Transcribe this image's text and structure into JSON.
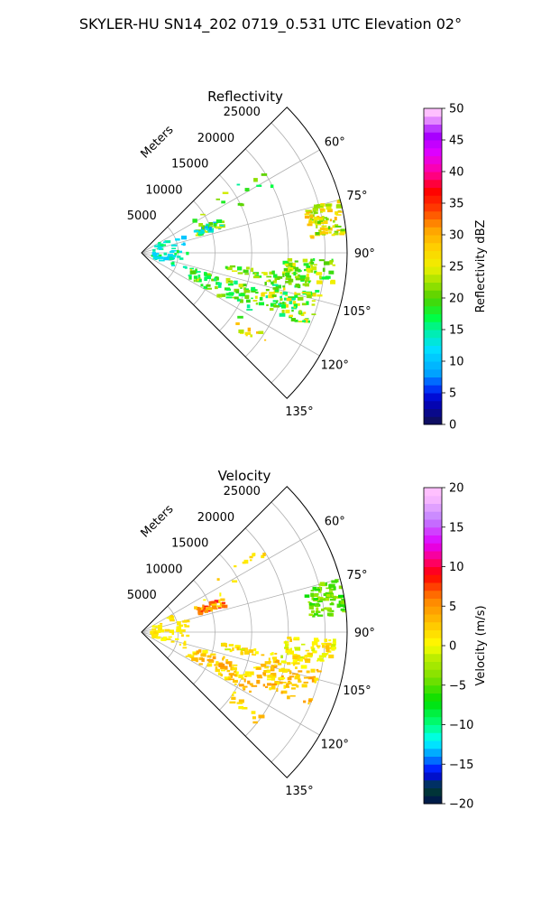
{
  "figure": {
    "title": "SKYLER-HU  SN14_202  0719_0.531 UTC Elevation 02°"
  },
  "chart_data": [
    {
      "type": "polar",
      "title": "Reflectivity",
      "radial_label": "Meters",
      "radial_ticks": [
        "5000",
        "10000",
        "15000",
        "20000",
        "25000"
      ],
      "radial_tick_values": [
        5000,
        10000,
        15000,
        20000,
        25000
      ],
      "rmax": 28000,
      "theta_min": 45,
      "theta_max": 135,
      "angle_ticks": [
        "60°",
        "75°",
        "90°",
        "105°",
        "120°",
        "135°"
      ],
      "angle_tick_values": [
        60,
        75,
        90,
        105,
        120,
        135
      ],
      "colorbar": {
        "label": "Reflectivity dBZ",
        "min": 0,
        "max": 50,
        "ticks": [
          "0",
          "5",
          "10",
          "15",
          "20",
          "25",
          "30",
          "35",
          "40",
          "45",
          "50"
        ],
        "colormap": "pyart_NWSRef"
      }
    },
    {
      "type": "polar",
      "title": "Velocity",
      "radial_label": "Meters",
      "radial_ticks": [
        "5000",
        "10000",
        "15000",
        "20000",
        "25000"
      ],
      "radial_tick_values": [
        5000,
        10000,
        15000,
        20000,
        25000
      ],
      "rmax": 28000,
      "theta_min": 45,
      "theta_max": 135,
      "angle_ticks": [
        "60°",
        "75°",
        "90°",
        "105°",
        "120°",
        "135°"
      ],
      "angle_tick_values": [
        60,
        75,
        90,
        105,
        120,
        135
      ],
      "colorbar": {
        "label": "Velocity (m/s)",
        "min": -20,
        "max": 20,
        "ticks": [
          "−20",
          "−15",
          "−10",
          "−5",
          "0",
          "5",
          "10",
          "15",
          "20"
        ],
        "colormap": "pyart_NWSVel"
      }
    }
  ]
}
